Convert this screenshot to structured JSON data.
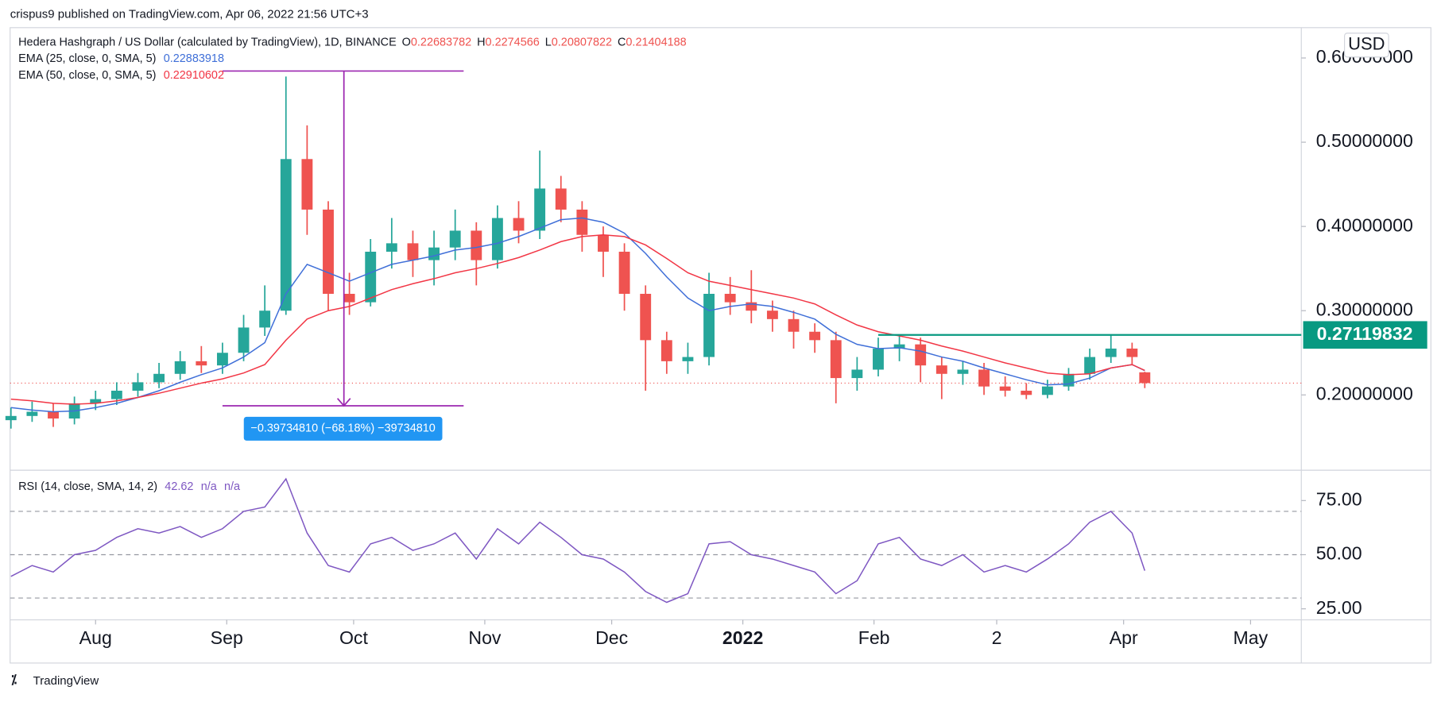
{
  "header": {
    "publisher": "crispus9 published on TradingView.com, Apr 06, 2022 21:56 UTC+3"
  },
  "footer": {
    "brand": "TradingView"
  },
  "chart_data": [
    {
      "type": "candlestick",
      "title": "Hedera Hashgraph / US Dollar (calculated by TradingView), 1D, BINANCE",
      "currency": "USD",
      "ohlc_labels": [
        "O",
        "H",
        "L",
        "C"
      ],
      "x": [
        -20,
        -15,
        -10,
        -5,
        0,
        5,
        10,
        15,
        20,
        25,
        30,
        35,
        40,
        45,
        50,
        55,
        60,
        65,
        70,
        75,
        80,
        85,
        90,
        95,
        100,
        105,
        110,
        115,
        120,
        125,
        130,
        135,
        140,
        145,
        150,
        155,
        160,
        165,
        170,
        175,
        180,
        185,
        190,
        195,
        200,
        205,
        210,
        215,
        220,
        225,
        230,
        235,
        240,
        245,
        248
      ],
      "open": [
        0.17,
        0.175,
        0.18,
        0.172,
        0.19,
        0.195,
        0.205,
        0.215,
        0.225,
        0.24,
        0.235,
        0.25,
        0.28,
        0.3,
        0.48,
        0.42,
        0.32,
        0.31,
        0.37,
        0.38,
        0.36,
        0.375,
        0.395,
        0.36,
        0.41,
        0.395,
        0.445,
        0.42,
        0.39,
        0.37,
        0.32,
        0.265,
        0.24,
        0.245,
        0.32,
        0.31,
        0.3,
        0.29,
        0.275,
        0.265,
        0.22,
        0.23,
        0.255,
        0.26,
        0.235,
        0.225,
        0.23,
        0.21,
        0.205,
        0.2,
        0.21,
        0.225,
        0.245,
        0.255,
        0.22683782
      ],
      "high": [
        0.185,
        0.192,
        0.19,
        0.198,
        0.205,
        0.215,
        0.226,
        0.238,
        0.252,
        0.258,
        0.262,
        0.295,
        0.33,
        0.578,
        0.52,
        0.43,
        0.345,
        0.385,
        0.41,
        0.395,
        0.395,
        0.42,
        0.405,
        0.425,
        0.43,
        0.49,
        0.46,
        0.43,
        0.4,
        0.38,
        0.33,
        0.275,
        0.262,
        0.345,
        0.34,
        0.348,
        0.312,
        0.3,
        0.285,
        0.275,
        0.245,
        0.268,
        0.272,
        0.268,
        0.245,
        0.24,
        0.238,
        0.222,
        0.214,
        0.218,
        0.232,
        0.255,
        0.272,
        0.262,
        0.2274566
      ],
      "low": [
        0.16,
        0.168,
        0.162,
        0.165,
        0.182,
        0.188,
        0.198,
        0.208,
        0.218,
        0.226,
        0.225,
        0.24,
        0.27,
        0.295,
        0.39,
        0.3,
        0.295,
        0.305,
        0.35,
        0.34,
        0.33,
        0.36,
        0.33,
        0.35,
        0.38,
        0.385,
        0.405,
        0.37,
        0.34,
        0.3,
        0.205,
        0.225,
        0.225,
        0.235,
        0.295,
        0.285,
        0.275,
        0.255,
        0.25,
        0.19,
        0.205,
        0.222,
        0.24,
        0.215,
        0.195,
        0.212,
        0.2,
        0.198,
        0.195,
        0.196,
        0.205,
        0.218,
        0.238,
        0.235,
        0.20807822
      ],
      "close": [
        0.175,
        0.18,
        0.172,
        0.19,
        0.195,
        0.205,
        0.215,
        0.225,
        0.24,
        0.235,
        0.25,
        0.28,
        0.3,
        0.48,
        0.42,
        0.32,
        0.31,
        0.37,
        0.38,
        0.36,
        0.375,
        0.395,
        0.36,
        0.41,
        0.395,
        0.445,
        0.42,
        0.39,
        0.37,
        0.32,
        0.265,
        0.24,
        0.245,
        0.32,
        0.31,
        0.3,
        0.29,
        0.275,
        0.265,
        0.22,
        0.23,
        0.255,
        0.26,
        0.235,
        0.225,
        0.23,
        0.21,
        0.205,
        0.2,
        0.21,
        0.225,
        0.245,
        0.255,
        0.245,
        0.21404188
      ],
      "up_color": "#26a69a",
      "down_color": "#ef5350",
      "series": [
        {
          "name": "EMA (25, close, 0, SMA, 5)",
          "color": "#3f6fd8",
          "values": [
            0.185,
            0.182,
            0.18,
            0.181,
            0.185,
            0.19,
            0.197,
            0.205,
            0.215,
            0.224,
            0.232,
            0.245,
            0.262,
            0.32,
            0.355,
            0.345,
            0.335,
            0.345,
            0.355,
            0.36,
            0.365,
            0.372,
            0.375,
            0.38,
            0.388,
            0.398,
            0.408,
            0.41,
            0.405,
            0.392,
            0.368,
            0.34,
            0.315,
            0.3,
            0.305,
            0.308,
            0.305,
            0.298,
            0.29,
            0.272,
            0.26,
            0.255,
            0.256,
            0.252,
            0.245,
            0.24,
            0.232,
            0.225,
            0.218,
            0.212,
            0.213,
            0.22,
            0.232,
            0.236,
            0.22883918
          ]
        },
        {
          "name": "EMA (50, close, 0, SMA, 5)",
          "color": "#f23645",
          "values": [
            0.195,
            0.193,
            0.19,
            0.189,
            0.19,
            0.193,
            0.197,
            0.202,
            0.208,
            0.214,
            0.219,
            0.226,
            0.236,
            0.265,
            0.29,
            0.3,
            0.305,
            0.315,
            0.325,
            0.332,
            0.338,
            0.345,
            0.35,
            0.356,
            0.363,
            0.372,
            0.382,
            0.388,
            0.39,
            0.388,
            0.378,
            0.362,
            0.345,
            0.335,
            0.33,
            0.325,
            0.32,
            0.315,
            0.308,
            0.295,
            0.283,
            0.275,
            0.27,
            0.265,
            0.258,
            0.252,
            0.245,
            0.238,
            0.232,
            0.226,
            0.224,
            0.225,
            0.232,
            0.236,
            0.22910602
          ]
        }
      ],
      "level": 0.27119832,
      "level_start": 185,
      "level_color": "#089981",
      "measure": {
        "from": 0.5845,
        "to": 0.1871,
        "x": 58.7,
        "x_start": 30,
        "x_end": 87,
        "label": "−0.39734810 (−68.18%) −39734810",
        "color": "#9c27b0"
      },
      "xlim": [
        -20.2,
        285
      ],
      "ylim": [
        0.1106,
        0.636
      ],
      "xticks": [
        {
          "value": 0,
          "label": "Aug"
        },
        {
          "value": 31,
          "label": "Sep"
        },
        {
          "value": 61,
          "label": "Oct"
        },
        {
          "value": 92,
          "label": "Nov"
        },
        {
          "value": 122,
          "label": "Dec"
        },
        {
          "value": 153,
          "label": "2022"
        },
        {
          "value": 184,
          "label": "Feb"
        },
        {
          "value": 213,
          "label": "2"
        },
        {
          "value": 243,
          "label": "Apr"
        },
        {
          "value": 273,
          "label": "May"
        }
      ],
      "yticks": [
        {
          "value": 0.2,
          "label": "0.20000000"
        },
        {
          "value": 0.3,
          "label": "0.30000000"
        },
        {
          "value": 0.4,
          "label": "0.40000000"
        },
        {
          "value": 0.5,
          "label": "0.50000000"
        },
        {
          "value": 0.6,
          "label": "0.60000000"
        }
      ]
    },
    {
      "type": "line",
      "series": [
        {
          "name": "RSI (14, close, SMA, 14, 2)",
          "color": "#7e57c2",
          "values": [
            40,
            45,
            42,
            50,
            52,
            58,
            62,
            60,
            63,
            58,
            62,
            70,
            72,
            85,
            60,
            45,
            42,
            55,
            58,
            52,
            55,
            60,
            48,
            62,
            55,
            65,
            58,
            50,
            48,
            42,
            33,
            28,
            32,
            55,
            56,
            50,
            48,
            45,
            42,
            32,
            38,
            55,
            58,
            48,
            45,
            50,
            42,
            45,
            42,
            48,
            55,
            65,
            70,
            60,
            42.62
          ]
        }
      ],
      "extra": [
        "n/a",
        "n/a"
      ],
      "bands": [
        70,
        50,
        30
      ],
      "ylim": [
        19.9,
        89
      ],
      "yticks": [
        {
          "value": 75,
          "label": "75.00"
        },
        {
          "value": 50,
          "label": "50.00"
        },
        {
          "value": 25,
          "label": "25.00"
        }
      ]
    }
  ]
}
